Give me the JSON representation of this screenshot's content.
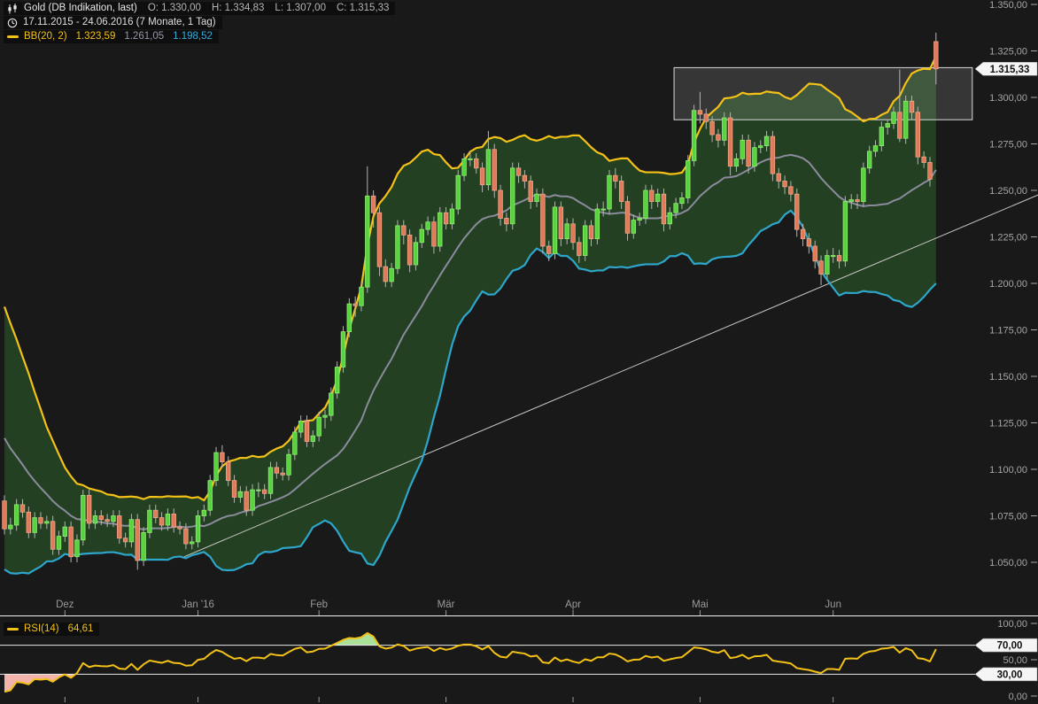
{
  "header": {
    "symbol": "Gold (DB Indikation, last)",
    "open_label": "O: 1.330,00",
    "high_label": "H: 1.334,83",
    "low_label": "L: 1.307,00",
    "close_label": "C: 1.315,33",
    "date_range": "17.11.2015 - 24.06.2016 (7 Monate, 1 Tag)",
    "bb_label": "BB(20, 2)",
    "bb_upper_value": "1.323,59",
    "bb_middle_value": "1.261,05",
    "bb_lower_value": "1.198,52"
  },
  "rsi_legend": {
    "label": "RSI(14)",
    "value": "64,61"
  },
  "price_axis": {
    "tag": "1.315,33",
    "ticks": [
      {
        "v": 1350,
        "label": "1.350,00"
      },
      {
        "v": 1325,
        "label": "1.325,00"
      },
      {
        "v": 1300,
        "label": "1.300,00"
      },
      {
        "v": 1275,
        "label": "1.275,00"
      },
      {
        "v": 1250,
        "label": "1.250,00"
      },
      {
        "v": 1225,
        "label": "1.225,00"
      },
      {
        "v": 1200,
        "label": "1.200,00"
      },
      {
        "v": 1175,
        "label": "1.175,00"
      },
      {
        "v": 1150,
        "label": "1.150,00"
      },
      {
        "v": 1125,
        "label": "1.125,00"
      },
      {
        "v": 1100,
        "label": "1.100,00"
      },
      {
        "v": 1075,
        "label": "1.075,00"
      },
      {
        "v": 1050,
        "label": "1.050,00"
      }
    ]
  },
  "rsi_axis": {
    "ticks": [
      {
        "v": 100,
        "label": "100,00"
      },
      {
        "v": 50,
        "label": "50,00"
      },
      {
        "v": 0,
        "label": "0,00"
      }
    ],
    "tags": [
      {
        "v": 70,
        "label": "70,00"
      },
      {
        "v": 30,
        "label": "30,00"
      }
    ]
  },
  "x_axis": {
    "months": [
      {
        "label": "Dez",
        "day": 10
      },
      {
        "label": "Jan '16",
        "day": 32
      },
      {
        "label": "Feb",
        "day": 52
      },
      {
        "label": "Mär",
        "day": 73
      },
      {
        "label": "Apr",
        "day": 94
      },
      {
        "label": "Mai",
        "day": 115
      },
      {
        "label": "Jun",
        "day": 137
      }
    ]
  },
  "colors": {
    "background": "#191919",
    "bb_upper": "#f3c117",
    "bb_middle": "#8b8b9e",
    "bb_lower": "#2ea6cb",
    "bb_fill": "rgba(52,118,48,0.42)",
    "candle_up": "#57d33f",
    "candle_up_border": "#93ec72",
    "candle_down": "#e07a58",
    "candle_down_border": "#efa88b",
    "wick": "#b3b3b3",
    "box_fill": "rgba(255,255,255,0.13)",
    "box_border": "#dcdcdc",
    "trendline": "#c8c8c8",
    "axis_text": "#a6a6a6",
    "month_text": "#9a9a9a",
    "separator": "#f2f2f2",
    "threshold": "#e9e9e9",
    "rsi_line": "#f3c117",
    "rsi_over_fill": "#abe29a",
    "rsi_under_fill": "#f2b3ab",
    "tag_bg": "#f5f5f5",
    "tag_text": "#111111",
    "legend_symbol": "#e9e9e9",
    "legend_ohlc": "#b5b5b5",
    "legend_date": "#dedede",
    "bb_text": "#f3c117",
    "bb_mid_text": "#9898ac",
    "bb_low_text": "#3aa9d6"
  },
  "chart_data": {
    "type": "candlestick",
    "title": "Gold (DB Indikation, last)",
    "period_shown": "17.11.2015 - 24.06.2016 (7 Monate, 1 Tag)",
    "last_bar": {
      "open": 1330.0,
      "high": 1334.83,
      "low": 1307.0,
      "close": 1315.33
    },
    "price_axis_range": [
      1050,
      1350
    ],
    "rsi_axis_range": [
      0,
      100
    ],
    "indicators": {
      "bollinger": {
        "period": 20,
        "stddev": 2,
        "last_upper": 1323.59,
        "last_middle": 1261.05,
        "last_lower": 1198.52
      },
      "rsi": {
        "period": 14,
        "last": 64.61,
        "overbought": 70,
        "oversold": 30
      }
    },
    "annotations": {
      "resistance_box": {
        "day_start": 110.7,
        "day_end": 160,
        "price_top": 1316,
        "price_bottom": 1288
      },
      "trendline": {
        "day_start": 29.3,
        "price_start": 1052.4,
        "day_end": 170.9,
        "price_end": 1247.6
      }
    },
    "warmup_closes": [
      1183,
      1180,
      1168,
      1166,
      1160,
      1155,
      1146,
      1140,
      1130,
      1122,
      1115,
      1108,
      1098,
      1090,
      1086,
      1082,
      1080,
      1084,
      1078,
      1080
    ],
    "candles": [
      [
        1083,
        1086,
        1065,
        1068
      ],
      [
        1068,
        1074,
        1065,
        1070
      ],
      [
        1070,
        1084,
        1067,
        1081
      ],
      [
        1081,
        1084,
        1074,
        1077
      ],
      [
        1077,
        1080,
        1063,
        1066
      ],
      [
        1066,
        1077,
        1063,
        1074
      ],
      [
        1074,
        1077,
        1068,
        1071
      ],
      [
        1071,
        1075,
        1068,
        1072
      ],
      [
        1072,
        1075,
        1054,
        1057
      ],
      [
        1057,
        1067,
        1054,
        1064
      ],
      [
        1064,
        1072,
        1061,
        1069
      ],
      [
        1069,
        1072,
        1050,
        1053
      ],
      [
        1053,
        1065,
        1050,
        1062
      ],
      [
        1062,
        1089,
        1059,
        1086
      ],
      [
        1086,
        1089,
        1068,
        1071
      ],
      [
        1071,
        1078,
        1068,
        1075
      ],
      [
        1075,
        1078,
        1070,
        1073
      ],
      [
        1073,
        1076,
        1069,
        1072
      ],
      [
        1072,
        1078,
        1069,
        1075
      ],
      [
        1075,
        1078,
        1060,
        1063
      ],
      [
        1063,
        1066,
        1058,
        1061
      ],
      [
        1061,
        1076,
        1058,
        1073
      ],
      [
        1073,
        1076,
        1046,
        1051
      ],
      [
        1051,
        1069,
        1048,
        1066
      ],
      [
        1066,
        1081,
        1063,
        1078
      ],
      [
        1078,
        1081,
        1071,
        1074
      ],
      [
        1074,
        1077,
        1067,
        1070
      ],
      [
        1070,
        1079,
        1067,
        1076
      ],
      [
        1076,
        1079,
        1066,
        1069
      ],
      [
        1069,
        1072,
        1065,
        1068
      ],
      [
        1068,
        1071,
        1057,
        1060
      ],
      [
        1060,
        1064,
        1057,
        1061
      ],
      [
        1061,
        1078,
        1058,
        1075
      ],
      [
        1075,
        1081,
        1072,
        1078
      ],
      [
        1078,
        1097,
        1075,
        1094
      ],
      [
        1094,
        1112,
        1091,
        1109
      ],
      [
        1109,
        1113,
        1101,
        1104
      ],
      [
        1104,
        1107,
        1091,
        1094
      ],
      [
        1094,
        1097,
        1082,
        1085
      ],
      [
        1085,
        1091,
        1082,
        1088
      ],
      [
        1088,
        1091,
        1075,
        1078
      ],
      [
        1078,
        1092,
        1075,
        1089
      ],
      [
        1089,
        1093,
        1085,
        1089
      ],
      [
        1089,
        1092,
        1084,
        1087
      ],
      [
        1087,
        1104,
        1084,
        1101
      ],
      [
        1101,
        1104,
        1095,
        1098
      ],
      [
        1098,
        1101,
        1094,
        1097
      ],
      [
        1097,
        1111,
        1094,
        1108
      ],
      [
        1108,
        1123,
        1105,
        1120
      ],
      [
        1120,
        1129,
        1117,
        1126
      ],
      [
        1126,
        1129,
        1112,
        1115
      ],
      [
        1115,
        1121,
        1112,
        1118
      ],
      [
        1118,
        1131,
        1115,
        1128
      ],
      [
        1128,
        1132,
        1122,
        1129
      ],
      [
        1129,
        1144,
        1126,
        1141
      ],
      [
        1141,
        1158,
        1138,
        1155
      ],
      [
        1155,
        1177,
        1152,
        1174
      ],
      [
        1174,
        1192,
        1171,
        1189
      ],
      [
        1189,
        1193,
        1182,
        1188
      ],
      [
        1188,
        1201,
        1185,
        1198
      ],
      [
        1198,
        1263,
        1195,
        1247
      ],
      [
        1247,
        1250,
        1230,
        1238
      ],
      [
        1238,
        1241,
        1204,
        1209
      ],
      [
        1209,
        1213,
        1198,
        1201
      ],
      [
        1201,
        1211,
        1198,
        1208
      ],
      [
        1208,
        1234,
        1205,
        1231
      ],
      [
        1231,
        1234,
        1221,
        1226
      ],
      [
        1226,
        1229,
        1206,
        1210
      ],
      [
        1210,
        1225,
        1207,
        1222
      ],
      [
        1222,
        1232,
        1219,
        1229
      ],
      [
        1229,
        1236,
        1226,
        1233
      ],
      [
        1233,
        1236,
        1216,
        1220
      ],
      [
        1220,
        1241,
        1217,
        1238
      ],
      [
        1238,
        1241,
        1229,
        1232
      ],
      [
        1232,
        1243,
        1229,
        1240
      ],
      [
        1240,
        1261,
        1237,
        1258
      ],
      [
        1258,
        1270,
        1255,
        1267
      ],
      [
        1267,
        1271,
        1263,
        1267
      ],
      [
        1267,
        1270,
        1259,
        1262
      ],
      [
        1262,
        1265,
        1249,
        1253
      ],
      [
        1253,
        1282,
        1250,
        1272
      ],
      [
        1272,
        1275,
        1246,
        1250
      ],
      [
        1250,
        1253,
        1231,
        1235
      ],
      [
        1235,
        1238,
        1228,
        1232
      ],
      [
        1232,
        1265,
        1229,
        1262
      ],
      [
        1262,
        1265,
        1254,
        1258
      ],
      [
        1258,
        1261,
        1251,
        1255
      ],
      [
        1255,
        1258,
        1240,
        1244
      ],
      [
        1244,
        1251,
        1241,
        1248
      ],
      [
        1248,
        1251,
        1216,
        1220
      ],
      [
        1220,
        1223,
        1212,
        1216
      ],
      [
        1216,
        1244,
        1213,
        1241
      ],
      [
        1241,
        1244,
        1220,
        1224
      ],
      [
        1224,
        1235,
        1221,
        1232
      ],
      [
        1232,
        1235,
        1218,
        1222
      ],
      [
        1222,
        1225,
        1211,
        1215
      ],
      [
        1215,
        1234,
        1212,
        1231
      ],
      [
        1231,
        1234,
        1220,
        1224
      ],
      [
        1224,
        1243,
        1221,
        1240
      ],
      [
        1240,
        1244,
        1236,
        1240
      ],
      [
        1240,
        1261,
        1237,
        1258
      ],
      [
        1258,
        1262,
        1251,
        1255
      ],
      [
        1255,
        1258,
        1240,
        1244
      ],
      [
        1244,
        1247,
        1223,
        1227
      ],
      [
        1227,
        1237,
        1224,
        1234
      ],
      [
        1234,
        1238,
        1231,
        1235
      ],
      [
        1235,
        1253,
        1232,
        1250
      ],
      [
        1250,
        1253,
        1240,
        1244
      ],
      [
        1244,
        1251,
        1241,
        1248
      ],
      [
        1248,
        1251,
        1228,
        1232
      ],
      [
        1232,
        1241,
        1229,
        1238
      ],
      [
        1238,
        1246,
        1235,
        1243
      ],
      [
        1243,
        1249,
        1240,
        1246
      ],
      [
        1246,
        1269,
        1243,
        1266
      ],
      [
        1266,
        1296,
        1263,
        1293
      ],
      [
        1293,
        1303,
        1286,
        1291
      ],
      [
        1291,
        1294,
        1283,
        1287
      ],
      [
        1287,
        1290,
        1276,
        1280
      ],
      [
        1280,
        1283,
        1273,
        1277
      ],
      [
        1277,
        1292,
        1274,
        1289
      ],
      [
        1289,
        1292,
        1258,
        1263
      ],
      [
        1263,
        1270,
        1260,
        1267
      ],
      [
        1267,
        1280,
        1264,
        1277
      ],
      [
        1277,
        1280,
        1259,
        1263
      ],
      [
        1263,
        1276,
        1260,
        1273
      ],
      [
        1273,
        1277,
        1270,
        1274
      ],
      [
        1274,
        1282,
        1271,
        1279
      ],
      [
        1279,
        1282,
        1255,
        1259
      ],
      [
        1259,
        1262,
        1251,
        1255
      ],
      [
        1255,
        1258,
        1248,
        1252
      ],
      [
        1252,
        1255,
        1244,
        1248
      ],
      [
        1248,
        1251,
        1225,
        1229
      ],
      [
        1229,
        1232,
        1220,
        1224
      ],
      [
        1224,
        1227,
        1216,
        1220
      ],
      [
        1220,
        1223,
        1208,
        1212
      ],
      [
        1212,
        1215,
        1199,
        1205
      ],
      [
        1205,
        1218,
        1202,
        1215
      ],
      [
        1215,
        1219,
        1211,
        1215
      ],
      [
        1215,
        1218,
        1208,
        1212
      ],
      [
        1212,
        1247,
        1209,
        1244
      ],
      [
        1244,
        1248,
        1240,
        1245
      ],
      [
        1245,
        1248,
        1240,
        1244
      ],
      [
        1244,
        1265,
        1241,
        1262
      ],
      [
        1262,
        1274,
        1259,
        1271
      ],
      [
        1271,
        1277,
        1268,
        1274
      ],
      [
        1274,
        1287,
        1271,
        1284
      ],
      [
        1284,
        1288,
        1280,
        1286
      ],
      [
        1286,
        1295,
        1283,
        1292
      ],
      [
        1292,
        1315,
        1276,
        1278
      ],
      [
        1278,
        1301,
        1275,
        1298
      ],
      [
        1298,
        1301,
        1288,
        1292
      ],
      [
        1292,
        1295,
        1264,
        1268
      ],
      [
        1268,
        1271,
        1262,
        1265
      ],
      [
        1265,
        1268,
        1252,
        1256
      ],
      [
        1330,
        1334.83,
        1307,
        1315.33
      ]
    ]
  }
}
